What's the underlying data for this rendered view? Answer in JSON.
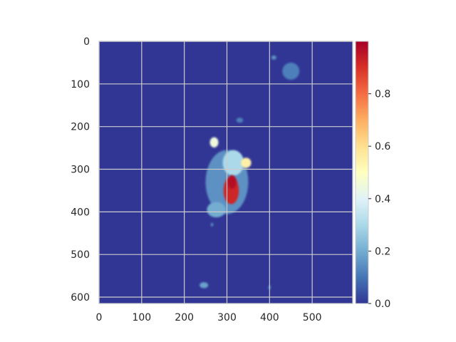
{
  "chart_data": {
    "type": "heatmap",
    "title": "",
    "xlabel": "",
    "ylabel": "",
    "xlim": [
      0,
      595
    ],
    "ylim": [
      615,
      0
    ],
    "xticks": [
      0,
      100,
      200,
      300,
      400,
      500
    ],
    "yticks": [
      0,
      100,
      200,
      300,
      400,
      500,
      600
    ],
    "grid": true,
    "colormap": "RdYlBu_r",
    "colorbar": {
      "ticks": [
        0.0,
        0.2,
        0.4,
        0.6,
        0.8
      ],
      "range": [
        0.0,
        1.0
      ]
    },
    "colors": {
      "background": "#313695",
      "grid": "#cccccc",
      "spine": "#cccccc",
      "text": "#262626"
    },
    "regions": [
      {
        "kind": "peak",
        "cx": 310,
        "cy": 350,
        "rx": 18,
        "ry": 32,
        "value": 0.92
      },
      {
        "kind": "peak",
        "cx": 312,
        "cy": 330,
        "rx": 10,
        "ry": 16,
        "value": 0.97
      },
      {
        "kind": "blob",
        "cx": 300,
        "cy": 330,
        "rx": 50,
        "ry": 75,
        "value": 0.15
      },
      {
        "kind": "blob",
        "cx": 345,
        "cy": 285,
        "rx": 12,
        "ry": 12,
        "value": 0.55
      },
      {
        "kind": "blob",
        "cx": 270,
        "cy": 237,
        "rx": 10,
        "ry": 12,
        "value": 0.45
      },
      {
        "kind": "blob",
        "cx": 275,
        "cy": 395,
        "rx": 22,
        "ry": 18,
        "value": 0.2
      },
      {
        "kind": "blob",
        "cx": 315,
        "cy": 285,
        "rx": 25,
        "ry": 30,
        "value": 0.3
      },
      {
        "kind": "blob",
        "cx": 450,
        "cy": 70,
        "rx": 20,
        "ry": 20,
        "value": 0.12
      },
      {
        "kind": "blob",
        "cx": 410,
        "cy": 38,
        "rx": 6,
        "ry": 5,
        "value": 0.15
      },
      {
        "kind": "blob",
        "cx": 246,
        "cy": 572,
        "rx": 10,
        "ry": 7,
        "value": 0.18
      },
      {
        "kind": "blob",
        "cx": 400,
        "cy": 577,
        "rx": 3,
        "ry": 5,
        "value": 0.12
      },
      {
        "kind": "blob",
        "cx": 330,
        "cy": 185,
        "rx": 8,
        "ry": 6,
        "value": 0.12
      },
      {
        "kind": "blob",
        "cx": 265,
        "cy": 430,
        "rx": 3,
        "ry": 4,
        "value": 0.15
      }
    ]
  }
}
